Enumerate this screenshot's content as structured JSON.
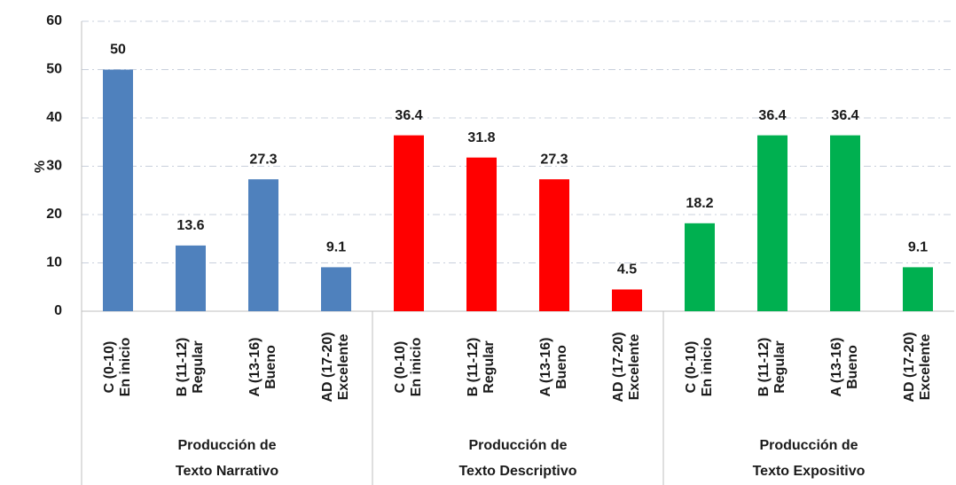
{
  "chart_data": {
    "type": "bar",
    "ylabel": "%",
    "categories": [
      [
        "C (0-10)",
        "En inicio"
      ],
      [
        "B (11-12)",
        "Regular"
      ],
      [
        "A (13-16)",
        "Bueno"
      ],
      [
        "AD (17-20)",
        "Excelente"
      ]
    ],
    "series": [
      {
        "name": [
          "Producción de",
          "Texto Narrativo"
        ],
        "color": "#4f81bd",
        "values": [
          50,
          13.6,
          27.3,
          9.1
        ]
      },
      {
        "name": [
          "Producción de",
          "Texto Descriptivo"
        ],
        "color": "#ff0000",
        "values": [
          36.4,
          31.8,
          27.3,
          4.5
        ]
      },
      {
        "name": [
          "Producción de",
          "Texto Expositivo"
        ],
        "color": "#00b050",
        "values": [
          18.2,
          36.4,
          36.4,
          9.1
        ]
      }
    ],
    "ylim": [
      0,
      60
    ],
    "yticks": [
      0,
      10,
      20,
      30,
      40,
      50,
      60
    ],
    "grid": true
  }
}
